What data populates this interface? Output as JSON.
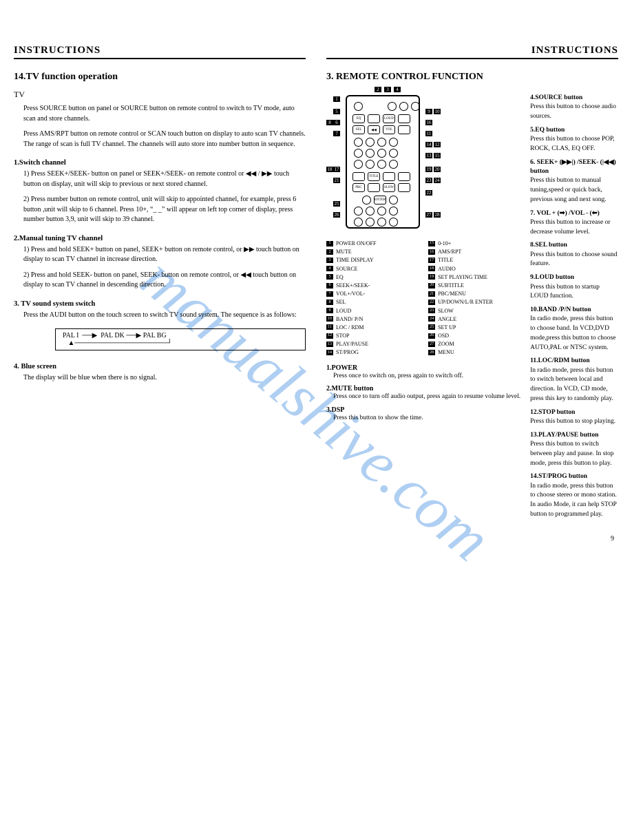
{
  "watermark": "manualshive.com",
  "left": {
    "header": "INSTRUCTIONS",
    "title": "14.TV function operation",
    "tv_label": "TV",
    "intro1": "Press SOURCE button on panel or SOURCE button on remote control to switch to TV mode, auto scan and store channels.",
    "intro2": "Press AMS/RPT button on remote control or  SCAN  touch button on display to auto scan TV channels. The range of scan is full TV channel. The channels will auto store into number button in sequence.",
    "switch_h": "1.Switch channel",
    "switch_1": "1) Press SEEK+/SEEK- button on panel or SEEK+/SEEK- on remote control or  ◀◀ / ▶▶ touch button on  display, unit will skip to previous or next stored channel.",
    "switch_2": "2) Press number button on remote control, unit will skip to appointed channel, for example, press 6 button ,unit will skip to 6 channel. Press 10+,  “_ _”  will appear on left top corner of display, press number button 3,9, unit will skip to 39 channel.",
    "manual_h": "2.Manual tuning TV channel",
    "manual_1": "1) Press and hold SEEK+ button on panel,  SEEK+ button on remote control, or  ▶▶ touch  button on display to scan TV channel in increase direction.",
    "manual_2": "2) Press and hold SEEK- button on panel,  SEEK- button on remote control, or  ◀◀ touch button on display to scan TV channel in descending direction.",
    "sound_h": "3. TV sound system switch",
    "sound_p": "Press the AUDI button on the touch screen to switch TV sound system. The sequence is as follows:",
    "seq": "PAL I  ──▶  PAL DK ──▶ PAL BG\n   ▲───────────────────┘",
    "blue_h": "4. Blue screen",
    "blue_p": "The display will be blue when there is no signal."
  },
  "right": {
    "header": "INSTRUCTIONS",
    "title": "3. REMOTE CONTROL FUNCTION",
    "legend_left": [
      {
        "n": "1",
        "t": "POWER ON/OFF"
      },
      {
        "n": "2",
        "t": "MUTE"
      },
      {
        "n": "3",
        "t": "TIME DISPLAY"
      },
      {
        "n": "4",
        "t": "SOURCE"
      },
      {
        "n": "5",
        "t": "EQ"
      },
      {
        "n": "6",
        "t": "SEEK+/SEEK-"
      },
      {
        "n": "7",
        "t": "VOL+/VOL-"
      },
      {
        "n": "8",
        "t": "SEL"
      },
      {
        "n": "9",
        "t": "LOUD"
      },
      {
        "n": "10",
        "t": "BAND/ P/N"
      },
      {
        "n": "11",
        "t": "LOC / RDM"
      },
      {
        "n": "12",
        "t": "STOP"
      },
      {
        "n": "13",
        "t": "PLAY/PAUSE"
      },
      {
        "n": "14",
        "t": "ST/PROG"
      }
    ],
    "legend_right": [
      {
        "n": "15",
        "t": "0-10+"
      },
      {
        "n": "16",
        "t": "AMS/RPT"
      },
      {
        "n": "17",
        "t": "TITLE"
      },
      {
        "n": "18",
        "t": "AUDIO"
      },
      {
        "n": "19",
        "t": "SET PLAYING TIME"
      },
      {
        "n": "20",
        "t": "SUBTITLE"
      },
      {
        "n": "21",
        "t": "PBC/MENU"
      },
      {
        "n": "22",
        "t": "UP/DOWN/L/R ENTER"
      },
      {
        "n": "23",
        "t": "SLOW"
      },
      {
        "n": "24",
        "t": "ANGLE"
      },
      {
        "n": "25",
        "t": "SET UP"
      },
      {
        "n": "26",
        "t": "OSD"
      },
      {
        "n": "27",
        "t": "ZOOM"
      },
      {
        "n": "28",
        "t": "MENU"
      }
    ],
    "desc_left": [
      {
        "h": "1.POWER",
        "p": "Press once to switch on, press again to switch off."
      },
      {
        "h": "2.MUTE button",
        "p": "Press once to turn off audio output, press again to resume volume level."
      },
      {
        "h": "3.DSP",
        "p": "Press this button to show the time."
      }
    ],
    "desc_right": [
      {
        "h": "4.SOURCE button",
        "p": "Press this button to choose audio sources."
      },
      {
        "h": "5.EQ button",
        "p": "Press this button to choose POP, ROCK, CLAS, EQ OFF."
      },
      {
        "h": "6. SEEK+ (▶▶|) /SEEK- (|◀◀)  button",
        "p": "Press this button to manual tuning,speed or quick back, previous song and next song."
      },
      {
        "h": "7.  VOL + (➡) /VOL - (⬅)",
        "p": "Press this button to increase or decrease volume level."
      },
      {
        "h": "8.SEL button",
        "p": "Press this button to choose sound feature."
      },
      {
        "h": "9.LOUD button",
        "p": "Press this button to startup LOUD function."
      },
      {
        "h": "10.BAND /P/N button",
        "p": "In radio mode, press this button to choose band. In VCD,DVD mode,press this button to choose AUTO,PAL or NTSC system."
      },
      {
        "h": "11.LOC/RDM button",
        "p": "In radio mode, press this button to switch between local and direction. In VCD, CD mode, press this key to randomly play."
      },
      {
        "h": "12.STOP button",
        "p": "Press this button to stop playing."
      },
      {
        "h": "13.PLAY/PAUSE button",
        "p": "Press this button to switch between play and pause. In stop mode, press this button to play."
      },
      {
        "h": "14.ST/PROG button",
        "p": "In radio mode, press this button to choose stereo or mono station. In audio Mode, it can help STOP button to programmed play."
      }
    ],
    "page_num": "9"
  },
  "remote_callouts_left": [
    "1",
    "5",
    "6",
    "7",
    "8",
    "17",
    "18",
    "21",
    "25",
    "26"
  ],
  "remote_callouts_right": [
    "2",
    "3",
    "4",
    "9",
    "10",
    "16",
    "11",
    "14",
    "12",
    "13",
    "15",
    "19",
    "20",
    "22",
    "23",
    "24",
    "27",
    "28"
  ]
}
